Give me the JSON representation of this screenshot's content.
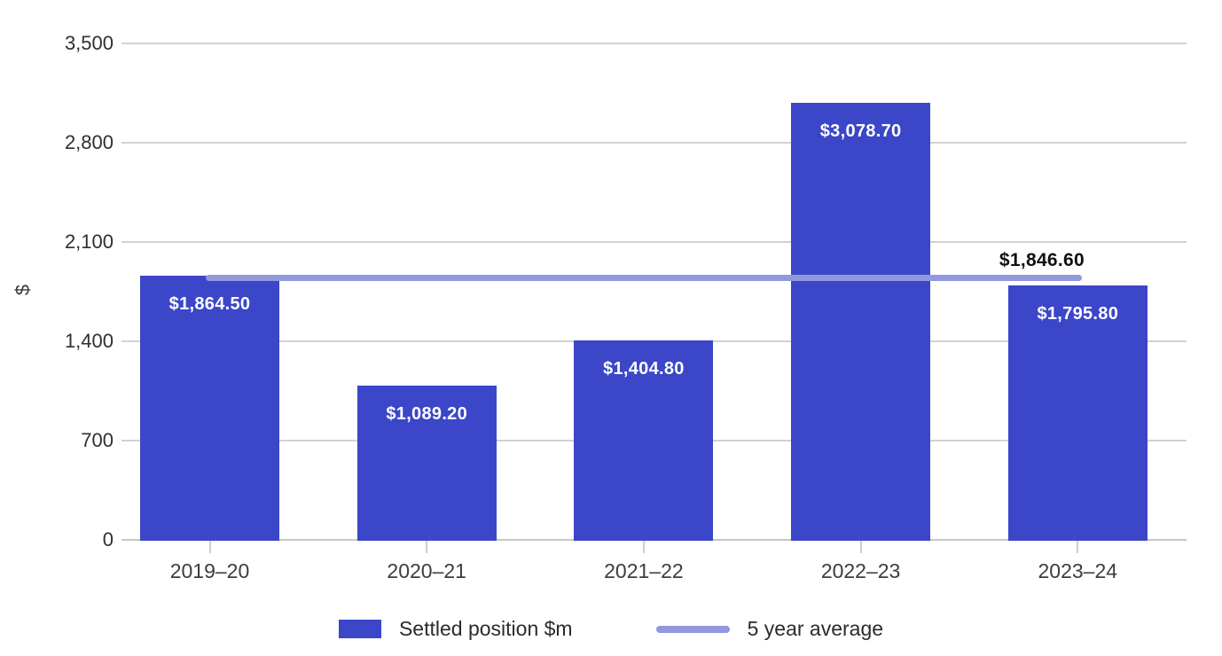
{
  "chart_data": {
    "type": "bar",
    "title": "",
    "categories": [
      "2019–20",
      "2020–21",
      "2021–22",
      "2022–23",
      "2023–24"
    ],
    "series": [
      {
        "name": "Settled position $m",
        "type": "bar",
        "values": [
          1864.5,
          1089.2,
          1404.8,
          3078.7,
          1795.8
        ],
        "value_labels": [
          "$1,864.50",
          "$1,089.20",
          "$1,404.80",
          "$3,078.70",
          "$1,795.80"
        ],
        "color": "#3b46c9"
      },
      {
        "name": "5 year average",
        "type": "line",
        "value": 1846.6,
        "value_label": "$1,846.60",
        "color": "#9198de"
      }
    ],
    "xlabel": "",
    "ylabel": "$",
    "ylim": [
      0,
      3500
    ],
    "yticks": [
      0,
      700,
      1400,
      2100,
      2800,
      3500
    ],
    "ytick_labels": [
      "0",
      "700",
      "1,400",
      "2,100",
      "2,800",
      "3,500"
    ],
    "grid": true,
    "legend_position": "bottom"
  },
  "colors": {
    "bar": "#3b46c9",
    "average_line": "#9198de",
    "gridline": "#d2d2d2",
    "data_label": "#ffffff",
    "annotation": "#111111"
  }
}
